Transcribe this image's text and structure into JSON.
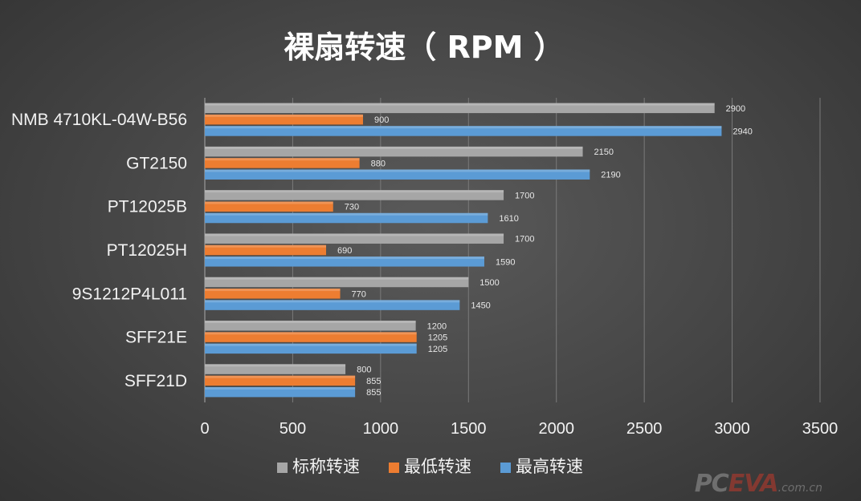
{
  "chart_data": {
    "type": "bar",
    "orientation": "horizontal",
    "title": "裸扇转速（ RPM ）",
    "categories": [
      "NMB 4710KL-04W-B56",
      "GT2150",
      "PT12025B",
      "PT12025H",
      "9S1212P4L011",
      "SFF21E",
      "SFF21D"
    ],
    "series": [
      {
        "name": "标称转速",
        "color": "#a6a6a6",
        "values": [
          2900,
          2150,
          1700,
          1700,
          1500,
          1200,
          800
        ]
      },
      {
        "name": "最低转速",
        "color": "#ed7d31",
        "values": [
          900,
          880,
          730,
          690,
          770,
          1205,
          855
        ]
      },
      {
        "name": "最高转速",
        "color": "#5b9bd5",
        "values": [
          2940,
          2190,
          1610,
          1590,
          1450,
          1205,
          855
        ]
      }
    ],
    "xlim": [
      0,
      3500
    ],
    "xticks": [
      "0",
      "500",
      "1000",
      "1500",
      "2000",
      "2500",
      "3000",
      "3500"
    ],
    "grid": true,
    "legend_position": "bottom",
    "data_labels": true
  },
  "watermark": {
    "part1": "PC",
    "part2": "EVA",
    "part3": ".com.cn"
  }
}
